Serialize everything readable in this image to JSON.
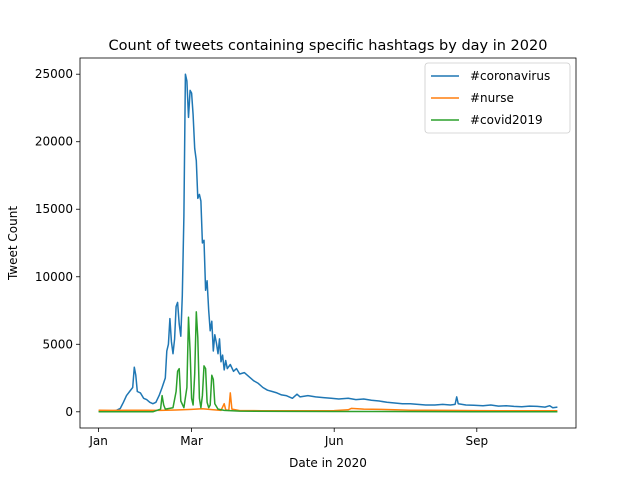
{
  "chart_data": {
    "type": "line",
    "title": "Count of tweets containing specific hashtags by day in 2020",
    "xlabel": "Date in 2020",
    "ylabel": "Tweet Count",
    "x_ticks": [
      "Jan",
      "Mar",
      "Jun",
      "Sep"
    ],
    "y_ticks": [
      "0",
      "5000",
      "10000",
      "15000",
      "20000",
      "25000"
    ],
    "ylim": [
      -1200,
      26200
    ],
    "xlim": [
      "2019-12-20",
      "2020-11-04"
    ],
    "legend_position": "top-right",
    "grid": false,
    "series": [
      {
        "name": "#coronavirus",
        "color": "#1f77b4",
        "points": [
          [
            "2020-01-01",
            50
          ],
          [
            "2020-01-08",
            60
          ],
          [
            "2020-01-12",
            80
          ],
          [
            "2020-01-15",
            250
          ],
          [
            "2020-01-17",
            700
          ],
          [
            "2020-01-19",
            1200
          ],
          [
            "2020-01-21",
            1500
          ],
          [
            "2020-01-23",
            1800
          ],
          [
            "2020-01-24",
            3300
          ],
          [
            "2020-01-25",
            2700
          ],
          [
            "2020-01-26",
            1500
          ],
          [
            "2020-01-28",
            1400
          ],
          [
            "2020-01-30",
            1000
          ],
          [
            "2020-02-01",
            900
          ],
          [
            "2020-02-03",
            700
          ],
          [
            "2020-02-05",
            600
          ],
          [
            "2020-02-07",
            700
          ],
          [
            "2020-02-09",
            1200
          ],
          [
            "2020-02-11",
            1800
          ],
          [
            "2020-02-13",
            2500
          ],
          [
            "2020-02-14",
            4500
          ],
          [
            "2020-02-15",
            5000
          ],
          [
            "2020-02-16",
            6900
          ],
          [
            "2020-02-17",
            5200
          ],
          [
            "2020-02-18",
            4300
          ],
          [
            "2020-02-19",
            5400
          ],
          [
            "2020-02-20",
            7800
          ],
          [
            "2020-02-21",
            8100
          ],
          [
            "2020-02-22",
            6500
          ],
          [
            "2020-02-23",
            5600
          ],
          [
            "2020-02-24",
            8600
          ],
          [
            "2020-02-25",
            14500
          ],
          [
            "2020-02-26",
            25000
          ],
          [
            "2020-02-27",
            24500
          ],
          [
            "2020-02-28",
            21800
          ],
          [
            "2020-02-29",
            23800
          ],
          [
            "2020-03-01",
            23600
          ],
          [
            "2020-03-02",
            22000
          ],
          [
            "2020-03-03",
            19500
          ],
          [
            "2020-03-04",
            18600
          ],
          [
            "2020-03-05",
            15800
          ],
          [
            "2020-03-06",
            16100
          ],
          [
            "2020-03-07",
            15600
          ],
          [
            "2020-03-08",
            12500
          ],
          [
            "2020-03-09",
            12700
          ],
          [
            "2020-03-10",
            9000
          ],
          [
            "2020-03-11",
            9700
          ],
          [
            "2020-03-12",
            7500
          ],
          [
            "2020-03-13",
            6000
          ],
          [
            "2020-03-14",
            6700
          ],
          [
            "2020-03-15",
            4500
          ],
          [
            "2020-03-16",
            5700
          ],
          [
            "2020-03-17",
            5100
          ],
          [
            "2020-03-18",
            4300
          ],
          [
            "2020-03-19",
            5400
          ],
          [
            "2020-03-20",
            3700
          ],
          [
            "2020-03-21",
            4200
          ],
          [
            "2020-03-22",
            3100
          ],
          [
            "2020-03-23",
            3800
          ],
          [
            "2020-03-24",
            3200
          ],
          [
            "2020-03-26",
            3500
          ],
          [
            "2020-03-28",
            3000
          ],
          [
            "2020-03-30",
            3200
          ],
          [
            "2020-04-01",
            2800
          ],
          [
            "2020-04-04",
            2900
          ],
          [
            "2020-04-07",
            2600
          ],
          [
            "2020-04-10",
            2300
          ],
          [
            "2020-04-13",
            2100
          ],
          [
            "2020-04-16",
            1800
          ],
          [
            "2020-04-19",
            1600
          ],
          [
            "2020-04-22",
            1500
          ],
          [
            "2020-04-25",
            1400
          ],
          [
            "2020-04-28",
            1250
          ],
          [
            "2020-05-01",
            1200
          ],
          [
            "2020-05-05",
            1000
          ],
          [
            "2020-05-08",
            1300
          ],
          [
            "2020-05-10",
            1100
          ],
          [
            "2020-05-15",
            1200
          ],
          [
            "2020-05-20",
            1100
          ],
          [
            "2020-05-25",
            1050
          ],
          [
            "2020-05-30",
            1000
          ],
          [
            "2020-06-04",
            950
          ],
          [
            "2020-06-10",
            1000
          ],
          [
            "2020-06-15",
            900
          ],
          [
            "2020-06-20",
            950
          ],
          [
            "2020-06-25",
            850
          ],
          [
            "2020-06-30",
            800
          ],
          [
            "2020-07-05",
            700
          ],
          [
            "2020-07-10",
            650
          ],
          [
            "2020-07-15",
            600
          ],
          [
            "2020-07-20",
            600
          ],
          [
            "2020-07-25",
            550
          ],
          [
            "2020-07-30",
            500
          ],
          [
            "2020-08-05",
            500
          ],
          [
            "2020-08-10",
            550
          ],
          [
            "2020-08-15",
            500
          ],
          [
            "2020-08-18",
            550
          ],
          [
            "2020-08-19",
            1100
          ],
          [
            "2020-08-20",
            600
          ],
          [
            "2020-08-25",
            500
          ],
          [
            "2020-08-30",
            480
          ],
          [
            "2020-09-05",
            450
          ],
          [
            "2020-09-10",
            500
          ],
          [
            "2020-09-15",
            420
          ],
          [
            "2020-09-20",
            450
          ],
          [
            "2020-09-25",
            400
          ],
          [
            "2020-09-30",
            380
          ],
          [
            "2020-10-05",
            420
          ],
          [
            "2020-10-10",
            400
          ],
          [
            "2020-10-15",
            350
          ],
          [
            "2020-10-18",
            450
          ],
          [
            "2020-10-20",
            300
          ],
          [
            "2020-10-23",
            350
          ]
        ]
      },
      {
        "name": "#nurse",
        "color": "#ff7f0e",
        "points": [
          [
            "2020-01-01",
            120
          ],
          [
            "2020-01-10",
            100
          ],
          [
            "2020-01-20",
            120
          ],
          [
            "2020-02-01",
            110
          ],
          [
            "2020-02-10",
            100
          ],
          [
            "2020-02-20",
            130
          ],
          [
            "2020-03-01",
            180
          ],
          [
            "2020-03-08",
            220
          ],
          [
            "2020-03-15",
            150
          ],
          [
            "2020-03-20",
            100
          ],
          [
            "2020-03-22",
            600
          ],
          [
            "2020-03-23",
            150
          ],
          [
            "2020-03-25",
            100
          ],
          [
            "2020-03-26",
            1400
          ],
          [
            "2020-03-27",
            200
          ],
          [
            "2020-04-01",
            90
          ],
          [
            "2020-04-15",
            80
          ],
          [
            "2020-05-01",
            80
          ],
          [
            "2020-05-15",
            80
          ],
          [
            "2020-06-01",
            90
          ],
          [
            "2020-06-10",
            150
          ],
          [
            "2020-06-12",
            250
          ],
          [
            "2020-06-20",
            200
          ],
          [
            "2020-07-01",
            180
          ],
          [
            "2020-07-10",
            150
          ],
          [
            "2020-07-20",
            120
          ],
          [
            "2020-08-01",
            110
          ],
          [
            "2020-08-15",
            100
          ],
          [
            "2020-09-01",
            90
          ],
          [
            "2020-09-15",
            80
          ],
          [
            "2020-10-01",
            80
          ],
          [
            "2020-10-15",
            80
          ],
          [
            "2020-10-23",
            80
          ]
        ]
      },
      {
        "name": "#covid2019",
        "color": "#2ca02c",
        "points": [
          [
            "2020-01-01",
            0
          ],
          [
            "2020-01-20",
            0
          ],
          [
            "2020-02-05",
            0
          ],
          [
            "2020-02-10",
            200
          ],
          [
            "2020-02-11",
            1200
          ],
          [
            "2020-02-12",
            500
          ],
          [
            "2020-02-13",
            200
          ],
          [
            "2020-02-18",
            300
          ],
          [
            "2020-02-20",
            1500
          ],
          [
            "2020-02-21",
            3000
          ],
          [
            "2020-02-22",
            3200
          ],
          [
            "2020-02-23",
            800
          ],
          [
            "2020-02-25",
            300
          ],
          [
            "2020-02-27",
            1800
          ],
          [
            "2020-02-28",
            7000
          ],
          [
            "2020-02-29",
            4500
          ],
          [
            "2020-03-01",
            1000
          ],
          [
            "2020-03-02",
            500
          ],
          [
            "2020-03-03",
            2800
          ],
          [
            "2020-03-04",
            7400
          ],
          [
            "2020-03-05",
            5500
          ],
          [
            "2020-03-06",
            1000
          ],
          [
            "2020-03-07",
            300
          ],
          [
            "2020-03-08",
            1200
          ],
          [
            "2020-03-09",
            3400
          ],
          [
            "2020-03-10",
            3200
          ],
          [
            "2020-03-11",
            700
          ],
          [
            "2020-03-12",
            300
          ],
          [
            "2020-03-13",
            500
          ],
          [
            "2020-03-14",
            2700
          ],
          [
            "2020-03-15",
            2400
          ],
          [
            "2020-03-16",
            600
          ],
          [
            "2020-03-18",
            200
          ],
          [
            "2020-03-22",
            100
          ],
          [
            "2020-04-01",
            50
          ],
          [
            "2020-05-01",
            30
          ],
          [
            "2020-06-01",
            20
          ],
          [
            "2020-07-01",
            20
          ],
          [
            "2020-08-01",
            15
          ],
          [
            "2020-09-01",
            10
          ],
          [
            "2020-10-01",
            10
          ],
          [
            "2020-10-23",
            10
          ]
        ]
      }
    ]
  }
}
